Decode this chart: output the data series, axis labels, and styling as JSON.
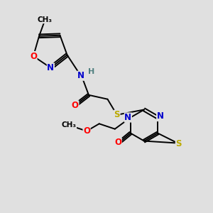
{
  "bg_color": "#e0e0e0",
  "bond_color": "#000000",
  "atom_colors": {
    "N": "#0000cc",
    "O": "#ff0000",
    "S": "#bbaa00",
    "H": "#508080",
    "C": "#000000"
  },
  "lw": 1.4,
  "fs": 8.5,
  "figsize": [
    3.0,
    3.0
  ],
  "dpi": 100
}
